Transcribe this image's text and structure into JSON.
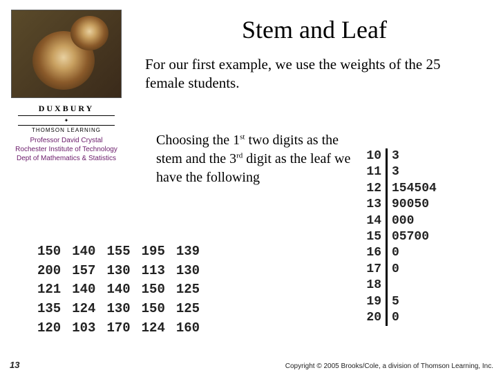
{
  "title": "Stem and Leaf",
  "intro": "For our first example, we use the weights of the 25 female students.",
  "explain_pre": "Choosing the 1",
  "explain_sup1": "st",
  "explain_mid": " two digits as the stem and the 3",
  "explain_sup2": "rd",
  "explain_post": " digit as the leaf we have the following",
  "publisher": {
    "brand": "DUXBURY",
    "sub": "THOMSON LEARNING",
    "line1": "Professor David Crystal",
    "line2": "Rochester Institute of Technology",
    "line3": "Dept of Mathematics & Statistics"
  },
  "data_table": {
    "rows": [
      [
        "150",
        "140",
        "155",
        "195",
        "139"
      ],
      [
        "200",
        "157",
        "130",
        "113",
        "130"
      ],
      [
        "121",
        "140",
        "140",
        "150",
        "125"
      ],
      [
        "135",
        "124",
        "130",
        "150",
        "125"
      ],
      [
        "120",
        "103",
        "170",
        "124",
        "160"
      ]
    ]
  },
  "stemleaf": {
    "rows": [
      {
        "stem": "10",
        "leaf": "3"
      },
      {
        "stem": "11",
        "leaf": "3"
      },
      {
        "stem": "12",
        "leaf": "154504"
      },
      {
        "stem": "13",
        "leaf": "90050"
      },
      {
        "stem": "14",
        "leaf": "000"
      },
      {
        "stem": "15",
        "leaf": "05700"
      },
      {
        "stem": "16",
        "leaf": "0"
      },
      {
        "stem": "17",
        "leaf": "0"
      },
      {
        "stem": "18",
        "leaf": ""
      },
      {
        "stem": "19",
        "leaf": "5"
      },
      {
        "stem": "20",
        "leaf": "0"
      }
    ]
  },
  "page_number": "13",
  "copyright": "Copyright © 2005 Brooks/Cole, a division of Thomson Learning, Inc."
}
